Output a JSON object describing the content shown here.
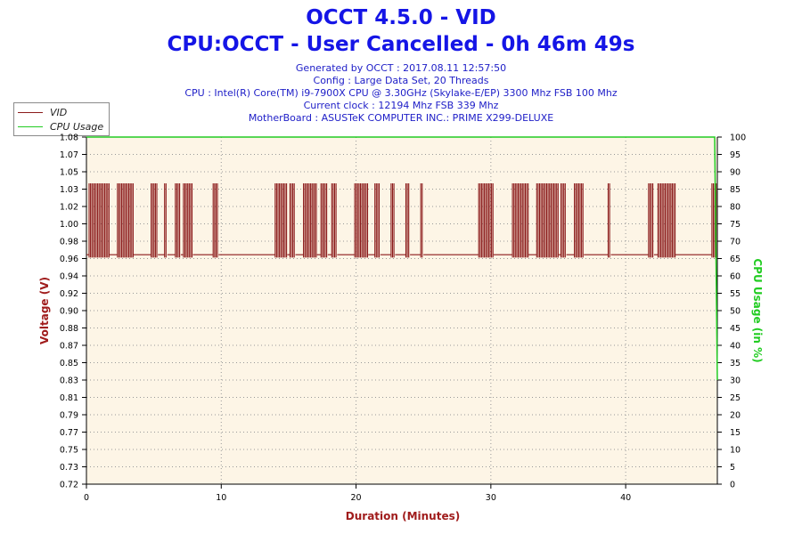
{
  "header": {
    "title1": "OCCT 4.5.0 - VID",
    "title2": "CPU:OCCT - User Cancelled - 0h 46m 49s",
    "info": [
      "Generated by OCCT : 2017.08.11 12:57:50",
      "Config : Large Data Set, 20 Threads",
      "CPU : Intel(R) Core(TM) i9-7900X CPU @ 3.30GHz (Skylake-E/EP) 3300 Mhz FSB 100 Mhz",
      "Current clock : 12194 Mhz FSB 339 Mhz",
      "MotherBoard : ASUSTeK COMPUTER INC.: PRIME X299-DELUXE"
    ]
  },
  "legend": {
    "items": [
      {
        "label": "VID",
        "color": "#8b1a1a"
      },
      {
        "label": "CPU Usage",
        "color": "#22cc22"
      }
    ]
  },
  "colors": {
    "vid": "#8b1a1a",
    "cpu_usage": "#22cc22",
    "plot_background": "#fdf5e6",
    "grid": "#999999",
    "left_axis_title": "#a01c1c",
    "right_axis_title": "#22cc22",
    "title": "#1515e6"
  },
  "chart_data": {
    "type": "line",
    "xlabel": "Duration (Minutes)",
    "ylabel": "Voltage (V)",
    "y2label": "CPU Usage (in %)",
    "xlim": [
      0,
      46.8
    ],
    "ylim": [
      0.72,
      1.08
    ],
    "y2lim": [
      0,
      100
    ],
    "x_ticks": [
      "0",
      "10",
      "20",
      "30",
      "40"
    ],
    "y_ticks": [
      "0.72",
      "0.73",
      "0.75",
      "0.77",
      "0.79",
      "0.81",
      "0.83",
      "0.85",
      "0.87",
      "0.88",
      "0.90",
      "0.92",
      "0.94",
      "0.96",
      "0.98",
      "1.00",
      "1.02",
      "1.03",
      "1.05",
      "1.07",
      "1.08"
    ],
    "y2_ticks": [
      "0",
      "5",
      "10",
      "15",
      "20",
      "25",
      "30",
      "35",
      "40",
      "45",
      "50",
      "55",
      "60",
      "65",
      "70",
      "75",
      "80",
      "85",
      "90",
      "95",
      "100"
    ],
    "grid": true,
    "legend_position": "top-left",
    "series": [
      {
        "name": "VID",
        "baseline": 0.958,
        "low": 0.955,
        "high": 1.032,
        "active_segments": [
          [
            0.2,
            1.7
          ],
          [
            2.3,
            3.5
          ],
          [
            4.8,
            5.3
          ],
          [
            5.8,
            6.0
          ],
          [
            6.6,
            7.0
          ],
          [
            7.2,
            7.9
          ],
          [
            9.4,
            9.8
          ],
          [
            14.0,
            14.9
          ],
          [
            15.1,
            15.5
          ],
          [
            16.1,
            17.1
          ],
          [
            17.4,
            17.9
          ],
          [
            18.2,
            18.6
          ],
          [
            19.9,
            20.9
          ],
          [
            21.4,
            21.8
          ],
          [
            22.6,
            22.9
          ],
          [
            23.7,
            24.0
          ],
          [
            24.8,
            25.0
          ],
          [
            29.1,
            30.2
          ],
          [
            31.6,
            32.8
          ],
          [
            33.4,
            35.0
          ],
          [
            35.2,
            35.6
          ],
          [
            36.2,
            36.9
          ],
          [
            38.7,
            38.9
          ],
          [
            41.7,
            42.1
          ],
          [
            42.4,
            43.7
          ],
          [
            46.4,
            46.8
          ]
        ]
      },
      {
        "name": "CPU Usage",
        "values_summary": "100 for the whole run, dropping to about 30 at the end",
        "x": [
          0,
          46.6,
          46.8
        ],
        "y": [
          100,
          100,
          30
        ]
      }
    ]
  }
}
